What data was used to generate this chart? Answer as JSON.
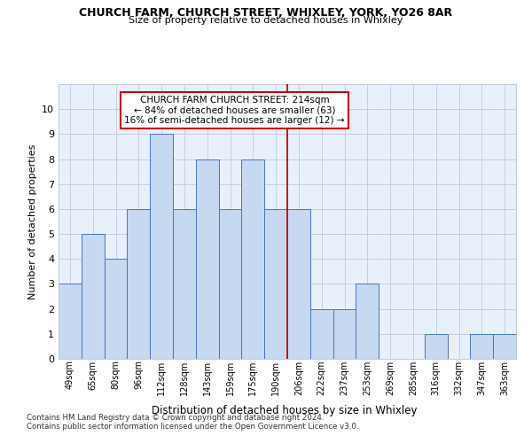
{
  "title": "CHURCH FARM, CHURCH STREET, WHIXLEY, YORK, YO26 8AR",
  "subtitle": "Size of property relative to detached houses in Whixley",
  "xlabel": "Distribution of detached houses by size in Whixley",
  "ylabel": "Number of detached properties",
  "categories": [
    "49sqm",
    "65sqm",
    "80sqm",
    "96sqm",
    "112sqm",
    "128sqm",
    "143sqm",
    "159sqm",
    "175sqm",
    "190sqm",
    "206sqm",
    "222sqm",
    "237sqm",
    "253sqm",
    "269sqm",
    "285sqm",
    "316sqm",
    "332sqm",
    "347sqm",
    "363sqm"
  ],
  "values": [
    3,
    5,
    4,
    6,
    9,
    6,
    8,
    6,
    8,
    6,
    6,
    2,
    2,
    3,
    0,
    0,
    1,
    0,
    1,
    1
  ],
  "bar_color": "#c6d9f0",
  "bar_edge_color": "#4472c4",
  "red_line_index": 10,
  "annotation_text": "CHURCH FARM CHURCH STREET: 214sqm\n← 84% of detached houses are smaller (63)\n16% of semi-detached houses are larger (12) →",
  "annotation_box_color": "#ffffff",
  "annotation_box_edge_color": "#cc0000",
  "red_line_color": "#cc0000",
  "ylim": [
    0,
    11
  ],
  "yticks": [
    0,
    1,
    2,
    3,
    4,
    5,
    6,
    7,
    8,
    9,
    10,
    11
  ],
  "footer_line1": "Contains HM Land Registry data © Crown copyright and database right 2024.",
  "footer_line2": "Contains public sector information licensed under the Open Government Licence v3.0.",
  "background_color": "#ffffff",
  "plot_bg_color": "#e8f0fc",
  "grid_color": "#c0c8d8"
}
